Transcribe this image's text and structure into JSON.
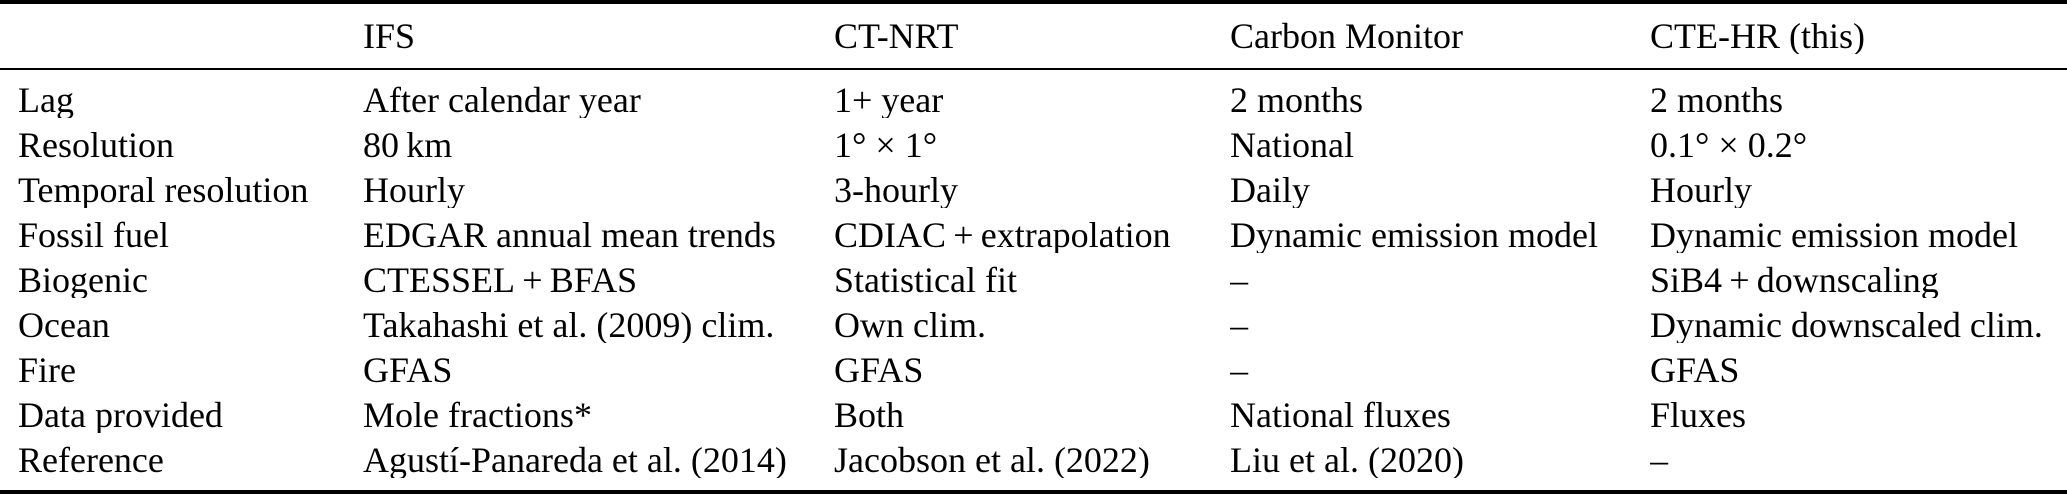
{
  "table": {
    "columns": [
      "",
      "IFS",
      "CT-NRT",
      "Carbon Monitor",
      "CTE-HR (this)"
    ],
    "rows": [
      {
        "label": "Lag",
        "cells": [
          "After calendar year",
          "1+ year",
          "2 months",
          "2 months"
        ]
      },
      {
        "label": "Resolution",
        "cells": [
          "80 km",
          "1° × 1°",
          "National",
          "0.1° × 0.2°"
        ]
      },
      {
        "label": "Temporal resolution",
        "cells": [
          "Hourly",
          "3-hourly",
          "Daily",
          "Hourly"
        ]
      },
      {
        "label": "Fossil fuel",
        "cells": [
          "EDGAR annual mean trends",
          "CDIAC + extrapolation",
          "Dynamic emission model",
          "Dynamic emission model"
        ]
      },
      {
        "label": "Biogenic",
        "cells": [
          "CTESSEL + BFAS",
          "Statistical fit",
          "–",
          "SiB4 + downscaling"
        ]
      },
      {
        "label": "Ocean",
        "cells": [
          "Takahashi et al. (2009) clim.",
          "Own clim.",
          "–",
          "Dynamic downscaled clim."
        ]
      },
      {
        "label": "Fire",
        "cells": [
          "GFAS",
          "GFAS",
          "–",
          "GFAS"
        ]
      },
      {
        "label": "Data provided",
        "cells": [
          "Mole fractions*",
          "Both",
          "National fluxes",
          "Fluxes"
        ]
      },
      {
        "label": "Reference",
        "cells": [
          "Agustí-Panareda et al. (2014)",
          "Jacobson et al. (2022)",
          "Liu et al. (2020)",
          "–"
        ]
      }
    ]
  }
}
